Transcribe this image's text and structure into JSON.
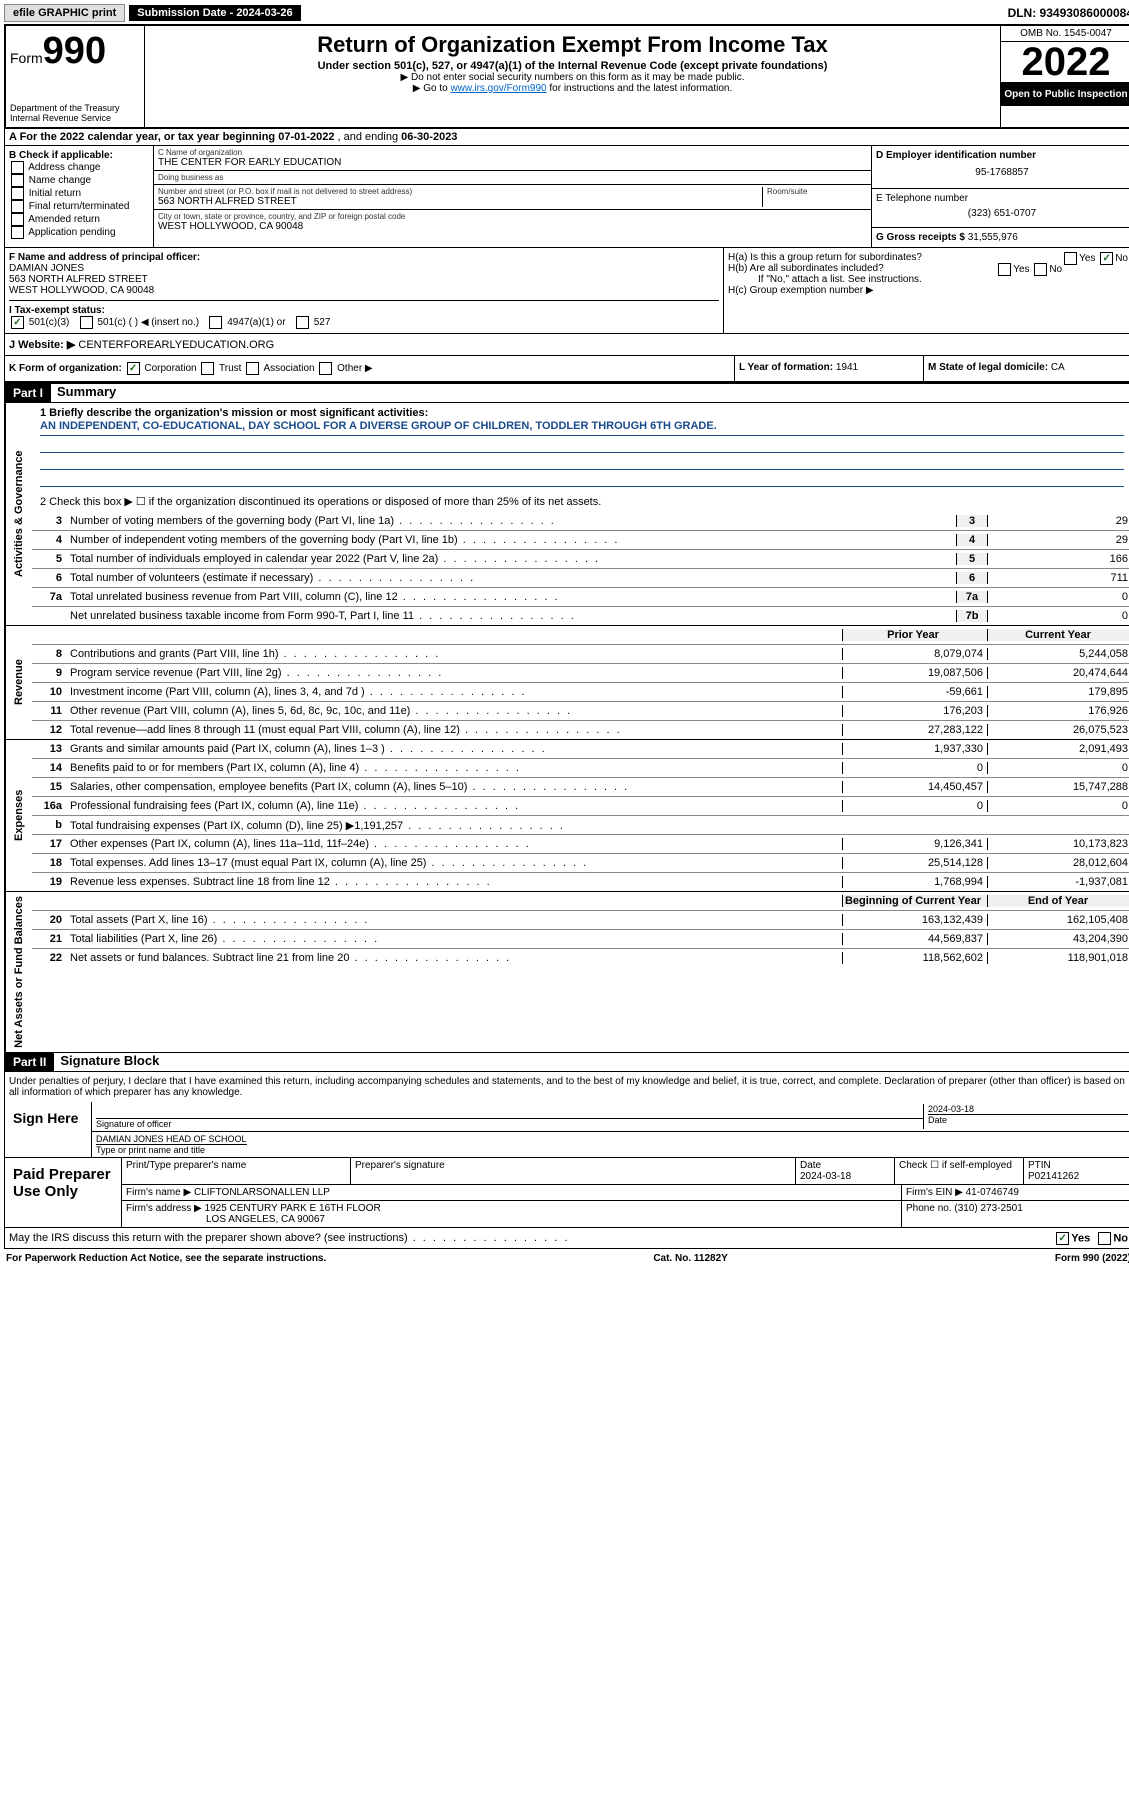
{
  "topbar": {
    "efile": "efile GRAPHIC print",
    "sub_label": "Submission Date - 2024-03-26",
    "dln": "DLN: 93493086000084"
  },
  "header": {
    "form_label": "Form",
    "form_num": "990",
    "title": "Return of Organization Exempt From Income Tax",
    "subtitle": "Under section 501(c), 527, or 4947(a)(1) of the Internal Revenue Code (except private foundations)",
    "note1": "▶ Do not enter social security numbers on this form as it may be made public.",
    "note2_pre": "▶ Go to ",
    "note2_link": "www.irs.gov/Form990",
    "note2_post": " for instructions and the latest information.",
    "dept": "Department of the Treasury\nInternal Revenue Service",
    "omb": "OMB No. 1545-0047",
    "year": "2022",
    "open": "Open to Public Inspection"
  },
  "rowA": {
    "text_pre": "A For the 2022 calendar year, or tax year beginning ",
    "begin": "07-01-2022",
    "mid": " , and ending ",
    "end": "06-30-2023"
  },
  "colB": {
    "label": "B Check if applicable:",
    "opts": [
      "Address change",
      "Name change",
      "Initial return",
      "Final return/terminated",
      "Amended return",
      "Application pending"
    ]
  },
  "colC": {
    "name_label": "C Name of organization",
    "name": "THE CENTER FOR EARLY EDUCATION",
    "dba_label": "Doing business as",
    "dba": "",
    "addr_label": "Number and street (or P.O. box if mail is not delivered to street address)",
    "room_label": "Room/suite",
    "addr": "563 NORTH ALFRED STREET",
    "city_label": "City or town, state or province, country, and ZIP or foreign postal code",
    "city": "WEST HOLLYWOOD, CA  90048"
  },
  "colD": {
    "ein_label": "D Employer identification number",
    "ein": "95-1768857",
    "tel_label": "E Telephone number",
    "tel": "(323) 651-0707",
    "gross_label": "G Gross receipts $",
    "gross": "31,555,976"
  },
  "colF": {
    "label": "F Name and address of principal officer:",
    "name": "DAMIAN JONES",
    "addr1": "563 NORTH ALFRED STREET",
    "addr2": "WEST HOLLYWOOD, CA  90048"
  },
  "colH": {
    "ha": "H(a)  Is this a group return for subordinates?",
    "hb": "H(b)  Are all subordinates included?",
    "hb_note": "If \"No,\" attach a list. See instructions.",
    "hc": "H(c)  Group exemption number ▶"
  },
  "rowI": {
    "label": "I  Tax-exempt status:",
    "opts": [
      "501(c)(3)",
      "501(c) (  ) ◀ (insert no.)",
      "4947(a)(1) or",
      "527"
    ]
  },
  "rowJ": {
    "label": "J  Website: ▶",
    "value": "CENTERFOREARLYEDUCATION.ORG"
  },
  "rowK": {
    "label": "K Form of organization:",
    "opts": [
      "Corporation",
      "Trust",
      "Association",
      "Other ▶"
    ]
  },
  "rowL": {
    "label": "L Year of formation:",
    "value": "1941"
  },
  "rowM": {
    "label": "M State of legal domicile:",
    "value": "CA"
  },
  "part1": {
    "header": "Part I",
    "title": "Summary",
    "line1_label": "1  Briefly describe the organization's mission or most significant activities:",
    "mission": "AN INDEPENDENT, CO-EDUCATIONAL, DAY SCHOOL FOR A DIVERSE GROUP OF CHILDREN, TODDLER THROUGH 6TH GRADE.",
    "line2": "2  Check this box ▶ ☐  if the organization discontinued its operations or disposed of more than 25% of its net assets."
  },
  "governance": {
    "label": "Activities & Governance",
    "rows": [
      {
        "n": "3",
        "d": "Number of voting members of the governing body (Part VI, line 1a)",
        "b": "3",
        "v": "29"
      },
      {
        "n": "4",
        "d": "Number of independent voting members of the governing body (Part VI, line 1b)",
        "b": "4",
        "v": "29"
      },
      {
        "n": "5",
        "d": "Total number of individuals employed in calendar year 2022 (Part V, line 2a)",
        "b": "5",
        "v": "166"
      },
      {
        "n": "6",
        "d": "Total number of volunteers (estimate if necessary)",
        "b": "6",
        "v": "711"
      },
      {
        "n": "7a",
        "d": "Total unrelated business revenue from Part VIII, column (C), line 12",
        "b": "7a",
        "v": "0"
      },
      {
        "n": "",
        "d": "Net unrelated business taxable income from Form 990-T, Part I, line 11",
        "b": "7b",
        "v": "0"
      }
    ]
  },
  "revenue": {
    "label": "Revenue",
    "hdr_prior": "Prior Year",
    "hdr_current": "Current Year",
    "rows": [
      {
        "n": "8",
        "d": "Contributions and grants (Part VIII, line 1h)",
        "p": "8,079,074",
        "c": "5,244,058"
      },
      {
        "n": "9",
        "d": "Program service revenue (Part VIII, line 2g)",
        "p": "19,087,506",
        "c": "20,474,644"
      },
      {
        "n": "10",
        "d": "Investment income (Part VIII, column (A), lines 3, 4, and 7d )",
        "p": "-59,661",
        "c": "179,895"
      },
      {
        "n": "11",
        "d": "Other revenue (Part VIII, column (A), lines 5, 6d, 8c, 9c, 10c, and 11e)",
        "p": "176,203",
        "c": "176,926"
      },
      {
        "n": "12",
        "d": "Total revenue—add lines 8 through 11 (must equal Part VIII, column (A), line 12)",
        "p": "27,283,122",
        "c": "26,075,523"
      }
    ]
  },
  "expenses": {
    "label": "Expenses",
    "rows": [
      {
        "n": "13",
        "d": "Grants and similar amounts paid (Part IX, column (A), lines 1–3 )",
        "p": "1,937,330",
        "c": "2,091,493"
      },
      {
        "n": "14",
        "d": "Benefits paid to or for members (Part IX, column (A), line 4)",
        "p": "0",
        "c": "0"
      },
      {
        "n": "15",
        "d": "Salaries, other compensation, employee benefits (Part IX, column (A), lines 5–10)",
        "p": "14,450,457",
        "c": "15,747,288"
      },
      {
        "n": "16a",
        "d": "Professional fundraising fees (Part IX, column (A), line 11e)",
        "p": "0",
        "c": "0"
      },
      {
        "n": "b",
        "d": "Total fundraising expenses (Part IX, column (D), line 25) ▶1,191,257",
        "p": "",
        "c": "",
        "shade": true
      },
      {
        "n": "17",
        "d": "Other expenses (Part IX, column (A), lines 11a–11d, 11f–24e)",
        "p": "9,126,341",
        "c": "10,173,823"
      },
      {
        "n": "18",
        "d": "Total expenses. Add lines 13–17 (must equal Part IX, column (A), line 25)",
        "p": "25,514,128",
        "c": "28,012,604"
      },
      {
        "n": "19",
        "d": "Revenue less expenses. Subtract line 18 from line 12",
        "p": "1,768,994",
        "c": "-1,937,081"
      }
    ]
  },
  "netassets": {
    "label": "Net Assets or Fund Balances",
    "hdr_begin": "Beginning of Current Year",
    "hdr_end": "End of Year",
    "rows": [
      {
        "n": "20",
        "d": "Total assets (Part X, line 16)",
        "p": "163,132,439",
        "c": "162,105,408"
      },
      {
        "n": "21",
        "d": "Total liabilities (Part X, line 26)",
        "p": "44,569,837",
        "c": "43,204,390"
      },
      {
        "n": "22",
        "d": "Net assets or fund balances. Subtract line 21 from line 20",
        "p": "118,562,602",
        "c": "118,901,018"
      }
    ]
  },
  "part2": {
    "header": "Part II",
    "title": "Signature Block",
    "declaration": "Under penalties of perjury, I declare that I have examined this return, including accompanying schedules and statements, and to the best of my knowledge and belief, it is true, correct, and complete. Declaration of preparer (other than officer) is based on all information of which preparer has any knowledge."
  },
  "sign": {
    "label": "Sign Here",
    "sig_label": "Signature of officer",
    "date_label": "Date",
    "date": "2024-03-18",
    "name": "DAMIAN JONES HEAD OF SCHOOL",
    "name_label": "Type or print name and title"
  },
  "preparer": {
    "label": "Paid Preparer Use Only",
    "hdr": [
      "Print/Type preparer's name",
      "Preparer's signature",
      "Date",
      "",
      "PTIN"
    ],
    "row1_date": "2024-03-18",
    "row1_check": "Check ☐ if self-employed",
    "row1_ptin": "P02141262",
    "firm_name_label": "Firm's name    ▶",
    "firm_name": "CLIFTONLARSONALLEN LLP",
    "firm_ein_label": "Firm's EIN ▶",
    "firm_ein": "41-0746749",
    "firm_addr_label": "Firm's address ▶",
    "firm_addr1": "1925 CENTURY PARK E 16TH FLOOR",
    "firm_addr2": "LOS ANGELES, CA  90067",
    "phone_label": "Phone no.",
    "phone": "(310) 273-2501"
  },
  "discuss": {
    "text": "May the IRS discuss this return with the preparer shown above? (see instructions)",
    "yes": "Yes",
    "no": "No"
  },
  "footer": {
    "left": "For Paperwork Reduction Act Notice, see the separate instructions.",
    "mid": "Cat. No. 11282Y",
    "right": "Form 990 (2022)"
  }
}
